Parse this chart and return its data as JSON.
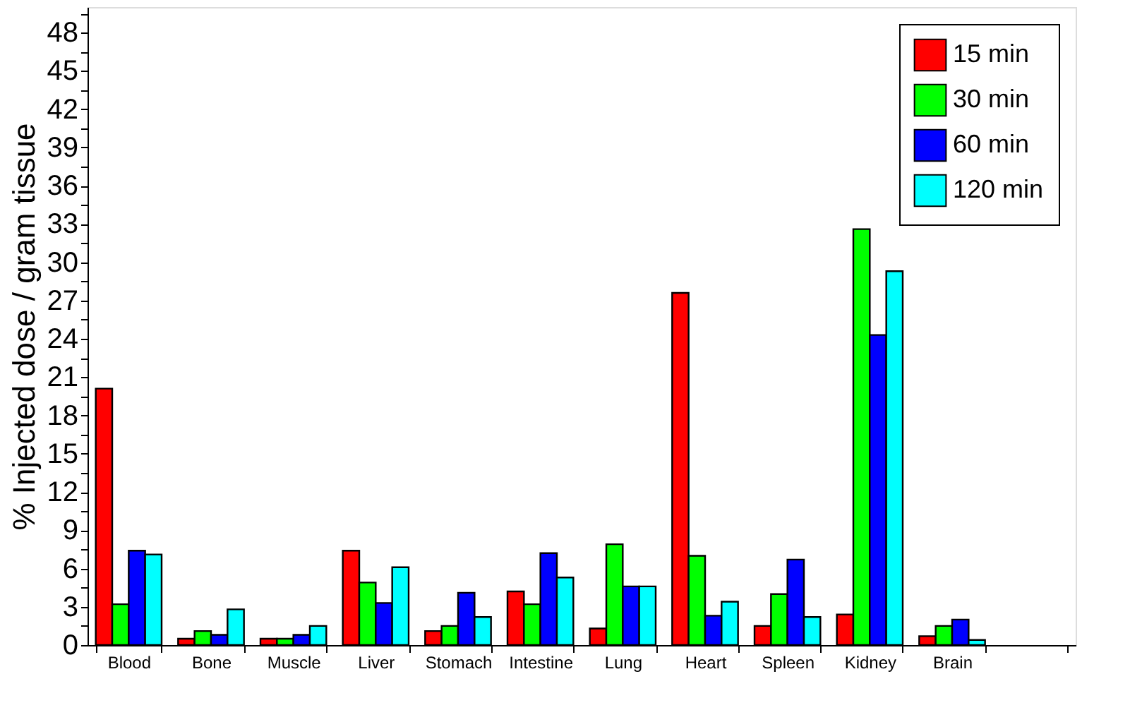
{
  "chart_data": {
    "type": "bar",
    "ylabel": "% Injected dose / gram tissue",
    "categories": [
      "Blood",
      "Bone",
      "Muscle",
      "Liver",
      "Stomach",
      "Intestine",
      "Lung",
      "Heart",
      "Spleen",
      "Kidney",
      "Brain",
      null
    ],
    "series": [
      {
        "name": "15 min",
        "color": "#ff0000",
        "values": [
          20.1,
          0.5,
          0.5,
          7.4,
          1.1,
          4.2,
          1.3,
          27.6,
          1.5,
          2.4,
          0.7,
          null
        ]
      },
      {
        "name": "30 min",
        "color": "#00ff00",
        "values": [
          3.2,
          1.1,
          0.5,
          4.9,
          1.5,
          3.2,
          7.9,
          7.0,
          4.0,
          32.6,
          1.5,
          null
        ]
      },
      {
        "name": "60 min",
        "color": "#0000ff",
        "values": [
          7.4,
          0.8,
          0.8,
          3.3,
          4.1,
          7.2,
          4.6,
          2.3,
          6.7,
          24.3,
          2.0,
          null
        ]
      },
      {
        "name": "120 min",
        "color": "#00ffff",
        "values": [
          7.1,
          2.8,
          1.5,
          6.1,
          2.2,
          5.3,
          4.6,
          3.4,
          2.2,
          29.3,
          0.4,
          null
        ]
      }
    ],
    "ylim": [
      0,
      50
    ],
    "yticks": [
      0,
      {
        "value": 1.5,
        "label": null
      },
      3,
      {
        "value": 4.5,
        "label": null
      },
      6,
      {
        "value": 7.5,
        "label": null
      },
      9,
      {
        "value": 10.5,
        "label": null
      },
      12,
      {
        "value": 13.5,
        "label": null
      },
      15,
      {
        "value": 16.5,
        "label": null
      },
      18,
      {
        "value": 19.5,
        "label": null
      },
      21,
      {
        "value": 22.5,
        "label": null
      },
      24,
      {
        "value": 25.5,
        "label": null
      },
      27,
      {
        "value": 28.5,
        "label": null
      },
      30,
      {
        "value": 31.5,
        "label": null
      },
      33,
      {
        "value": 34.5,
        "label": null
      },
      36,
      {
        "value": 37.5,
        "label": null
      },
      39,
      {
        "value": 40.5,
        "label": null
      },
      42,
      {
        "value": 43.5,
        "label": null
      },
      45,
      {
        "value": 46.5,
        "label": null
      },
      48,
      {
        "value": 49.5,
        "label": null
      }
    ],
    "grid": false,
    "legend": "top right"
  }
}
